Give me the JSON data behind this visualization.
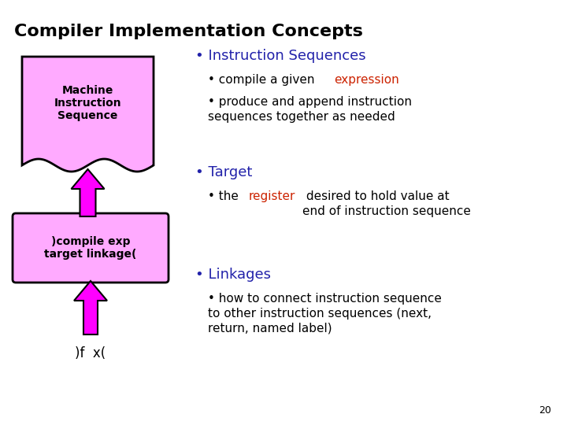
{
  "title": "Compiler Implementation Concepts",
  "title_fontsize": 16,
  "title_fontweight": "bold",
  "title_color": "#000000",
  "bg_color": "#ffffff",
  "box1_label": "Machine\nInstruction\nSequence",
  "box1_facecolor": "#ffaaff",
  "box1_edgecolor": "#000000",
  "box2_label": ")compile exp\ntarget linkage(",
  "box2_facecolor": "#ffaaff",
  "box2_edgecolor": "#000000",
  "label3": ")f  x(",
  "arrow_color": "#ff00ff",
  "arrow_edge_color": "#000000",
  "bullet_color": "#2222aa",
  "red_color": "#cc2200",
  "black_color": "#000000",
  "page_num": "20",
  "section1_title": "Instruction Sequences",
  "section1_b1_pre": "compile a given ",
  "section1_b1_red": "expression",
  "section1_b2": "produce and append instruction\nsequences together as needed",
  "section2_title": "Target",
  "section2_b1_pre": "the ",
  "section2_b1_red": "register",
  "section2_b1_post": " desired to hold value at\nend of instruction sequence",
  "section3_title": "Linkages",
  "section3_b1": "how to connect instruction sequence\nto other instruction sequences (next,\nreturn, named label)"
}
